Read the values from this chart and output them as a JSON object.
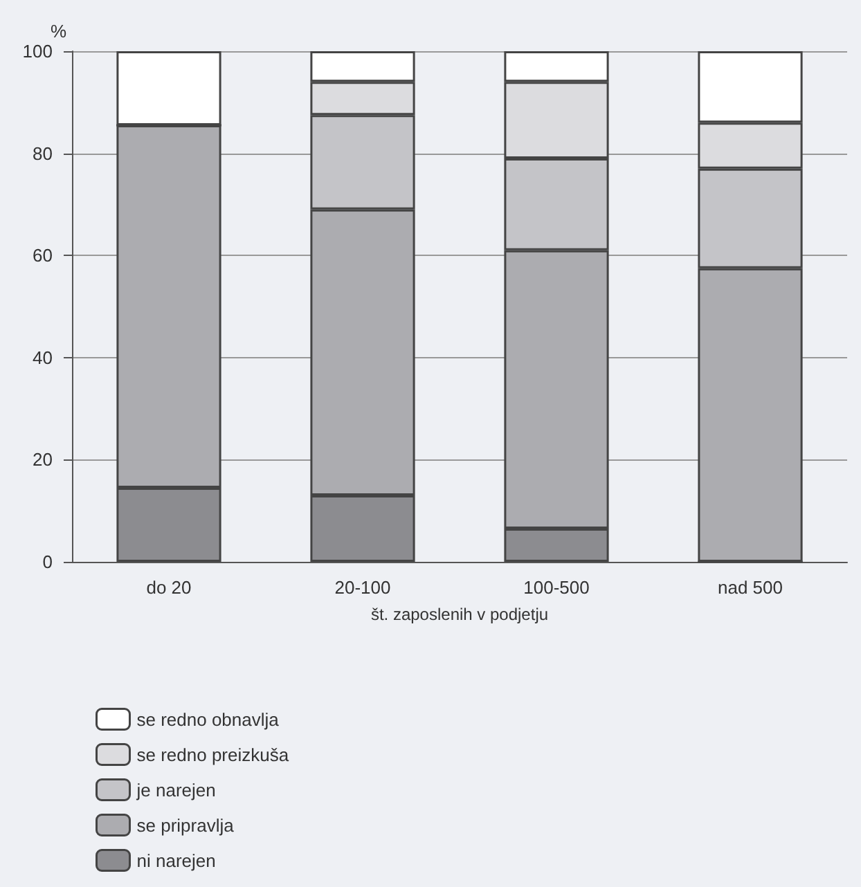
{
  "chart_data": {
    "type": "bar",
    "stacked": true,
    "xlabel": "št. zaposlenih v podjetju",
    "ylabel": "%",
    "categories": [
      "do 20",
      "20-100",
      "100-500",
      "nad 500"
    ],
    "series": [
      {
        "name": "ni narejen",
        "color": "#8c8c90",
        "values": [
          14.5,
          13,
          6.5,
          0
        ]
      },
      {
        "name": "se pripravlja",
        "color": "#acacb0",
        "values": [
          71,
          56,
          54.5,
          57.5
        ]
      },
      {
        "name": "je narejen",
        "color": "#c4c4c8",
        "values": [
          0,
          18.5,
          18,
          19.5
        ]
      },
      {
        "name": "se redno preizkuša",
        "color": "#dcdcdf",
        "values": [
          0,
          6.5,
          15,
          9
        ]
      },
      {
        "name": "se redno obnavlja",
        "color": "#ffffff",
        "values": [
          14.5,
          6,
          6,
          14
        ]
      }
    ],
    "ylim": [
      0,
      100
    ],
    "yticks": [
      0,
      20,
      40,
      60,
      80,
      100
    ],
    "grid": "y",
    "legend": "bottom left"
  }
}
